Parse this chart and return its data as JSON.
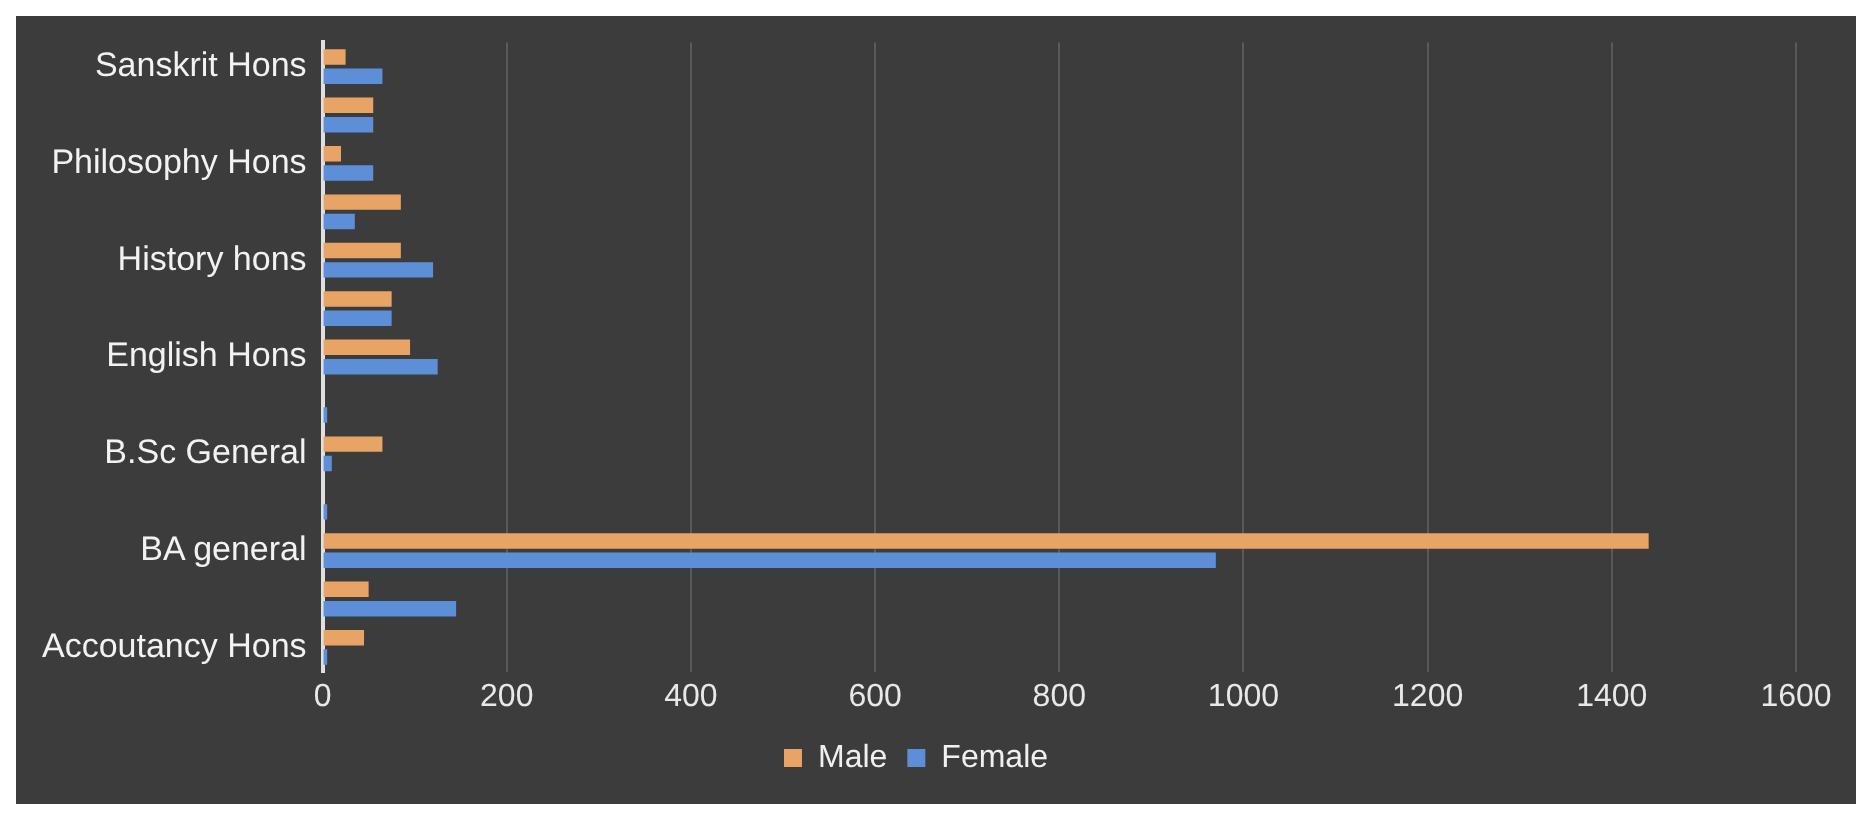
{
  "chart_data": {
    "type": "bar",
    "orientation": "horizontal",
    "categories": [
      "Sanskrit Hons",
      null,
      "Philosophy Hons",
      null,
      "History hons",
      null,
      "English Hons",
      null,
      "B.Sc General",
      null,
      "BA general",
      null,
      "Accoutancy Hons"
    ],
    "series": [
      {
        "name": "Male",
        "color": "#e8a464",
        "values": [
          25,
          55,
          20,
          85,
          85,
          75,
          95,
          0,
          65,
          0,
          1440,
          50,
          45
        ]
      },
      {
        "name": "Female",
        "color": "#5d8fd8",
        "values": [
          65,
          55,
          55,
          35,
          120,
          75,
          125,
          5,
          10,
          5,
          970,
          145,
          5
        ]
      }
    ],
    "xlim": [
      0,
      1600
    ],
    "xticks": [
      0,
      200,
      400,
      600,
      800,
      1000,
      1200,
      1400,
      1600
    ],
    "grid": "x",
    "legend": "bottom"
  }
}
